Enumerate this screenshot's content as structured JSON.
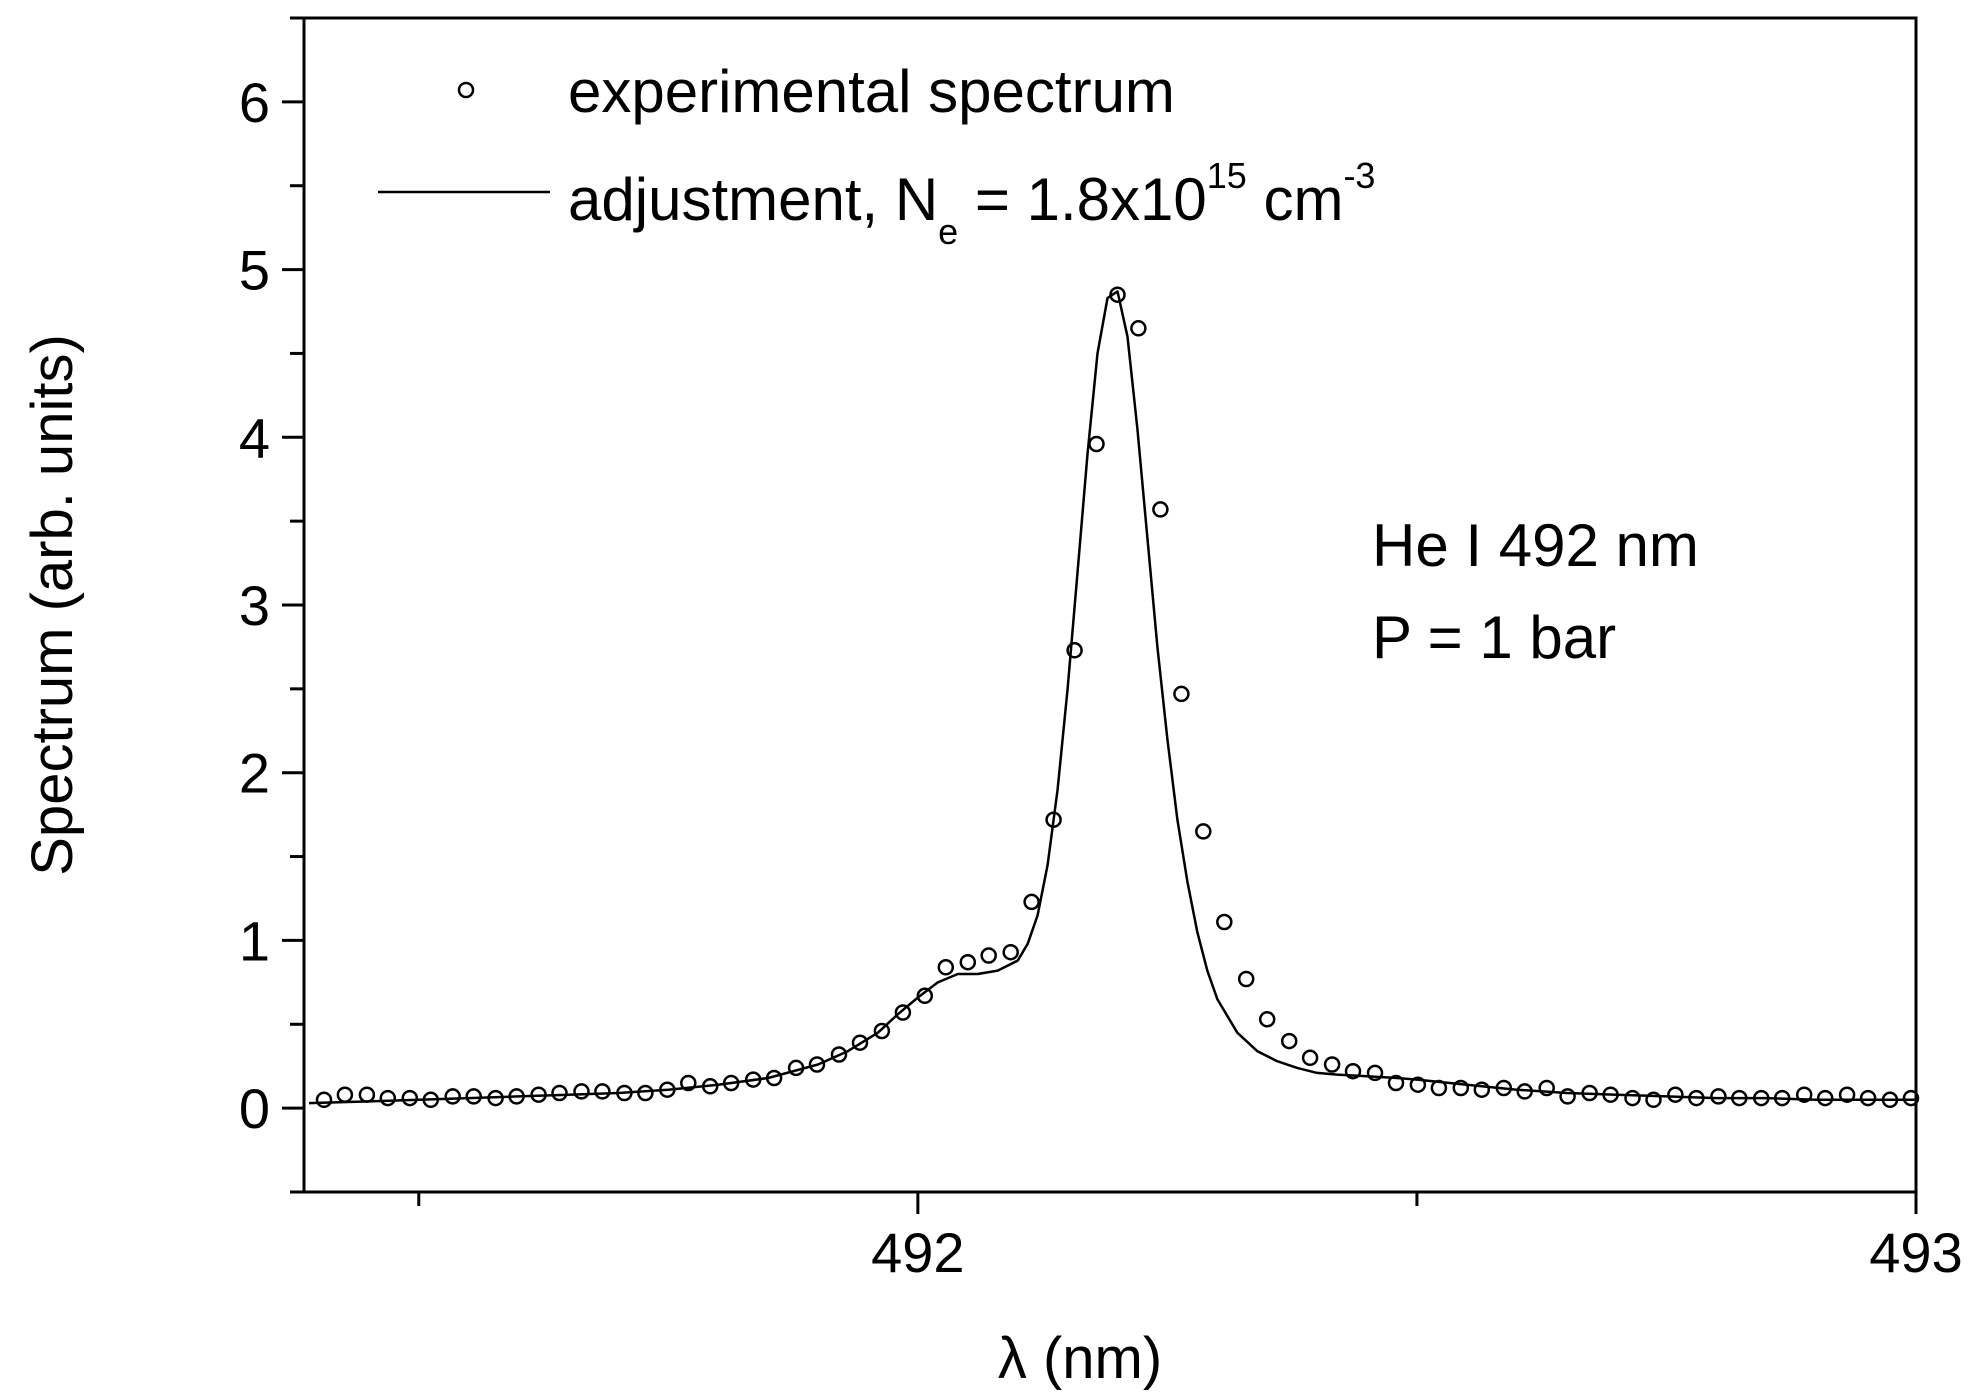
{
  "chart_data": {
    "type": "scatter",
    "title": "",
    "xlabel": "λ (nm)",
    "ylabel": "Spectrum (arb. units)",
    "xlim": [
      491.385,
      493.0
    ],
    "ylim": [
      -0.5,
      6.5
    ],
    "x_ticks": [
      491.5,
      492,
      492.5,
      493
    ],
    "x_tick_labels": [
      "",
      "492",
      "",
      "493"
    ],
    "y_ticks": [
      -0.5,
      0,
      0.5,
      1,
      1.5,
      2,
      2.5,
      3,
      3.5,
      4,
      4.5,
      5,
      5.5,
      6,
      6.5
    ],
    "y_tick_labels": [
      "",
      "0",
      "",
      "1",
      "",
      "2",
      "",
      "3",
      "",
      "4",
      "",
      "5",
      "",
      "6",
      ""
    ],
    "grid": false,
    "legend_position": "top-left",
    "legend": {
      "marker_label": "experimental spectrum",
      "line_label_main": "adjustment, N",
      "line_label_sub": "e",
      "line_label_mid": " = 1.8x10",
      "line_label_sup": "15",
      "line_label_unit": " cm",
      "line_label_unit_sup": "-3"
    },
    "annotations": [
      "He I 492 nm",
      "P = 1 bar"
    ],
    "series": [
      {
        "name": "experimental spectrum",
        "style": "markers",
        "x": [
          491.405,
          491.426,
          491.448,
          491.469,
          491.491,
          491.512,
          491.534,
          491.555,
          491.577,
          491.598,
          491.62,
          491.641,
          491.663,
          491.684,
          491.706,
          491.727,
          491.749,
          491.77,
          491.792,
          491.813,
          491.835,
          491.856,
          491.878,
          491.899,
          491.921,
          491.942,
          491.964,
          491.985,
          492.007,
          492.028,
          492.05,
          492.071,
          492.093,
          492.114,
          492.136,
          492.157,
          492.179,
          492.2,
          492.221,
          492.243,
          492.264,
          492.286,
          492.307,
          492.329,
          492.35,
          492.372,
          492.393,
          492.415,
          492.436,
          492.458,
          492.479,
          492.501,
          492.522,
          492.544,
          492.565,
          492.587,
          492.608,
          492.63,
          492.651,
          492.673,
          492.694,
          492.716,
          492.737,
          492.759,
          492.78,
          492.802,
          492.823,
          492.845,
          492.866,
          492.888,
          492.909,
          492.931,
          492.952,
          492.974,
          492.995
        ],
        "y": [
          0.05,
          0.08,
          0.08,
          0.06,
          0.06,
          0.05,
          0.07,
          0.07,
          0.06,
          0.07,
          0.08,
          0.09,
          0.1,
          0.1,
          0.09,
          0.09,
          0.11,
          0.15,
          0.13,
          0.15,
          0.17,
          0.18,
          0.24,
          0.26,
          0.32,
          0.39,
          0.46,
          0.57,
          0.67,
          0.84,
          0.87,
          0.91,
          0.93,
          1.23,
          1.72,
          2.73,
          3.96,
          4.85,
          4.65,
          3.57,
          2.47,
          1.65,
          1.11,
          0.77,
          0.53,
          0.4,
          0.3,
          0.26,
          0.22,
          0.21,
          0.15,
          0.14,
          0.12,
          0.12,
          0.11,
          0.12,
          0.1,
          0.12,
          0.07,
          0.09,
          0.08,
          0.06,
          0.05,
          0.08,
          0.06,
          0.07,
          0.06,
          0.06,
          0.06,
          0.08,
          0.06,
          0.08,
          0.06,
          0.05,
          0.06
        ]
      },
      {
        "name": "adjustment, Ne = 1.8x10^15 cm^-3",
        "style": "line",
        "x": [
          491.39,
          491.45,
          491.5,
          491.55,
          491.6,
          491.65,
          491.7,
          491.75,
          491.8,
          491.85,
          491.9,
          491.93,
          491.96,
          491.98,
          492.0,
          492.02,
          492.04,
          492.06,
          492.08,
          492.1,
          492.11,
          492.12,
          492.13,
          492.14,
          492.15,
          492.16,
          492.17,
          492.18,
          492.19,
          492.2,
          492.21,
          492.22,
          492.23,
          492.24,
          492.25,
          492.26,
          492.27,
          492.28,
          492.29,
          492.3,
          492.32,
          492.34,
          492.36,
          492.38,
          492.4,
          492.42,
          492.45,
          492.48,
          492.5,
          492.55,
          492.6,
          492.65,
          492.7,
          492.75,
          492.8,
          492.85,
          492.9,
          492.95,
          493.0
        ],
        "y": [
          0.03,
          0.04,
          0.05,
          0.06,
          0.07,
          0.08,
          0.09,
          0.11,
          0.14,
          0.18,
          0.26,
          0.34,
          0.45,
          0.56,
          0.66,
          0.75,
          0.8,
          0.8,
          0.82,
          0.88,
          0.98,
          1.15,
          1.45,
          1.9,
          2.5,
          3.2,
          3.9,
          4.5,
          4.83,
          4.87,
          4.6,
          4.05,
          3.4,
          2.75,
          2.2,
          1.72,
          1.35,
          1.05,
          0.82,
          0.65,
          0.45,
          0.34,
          0.28,
          0.24,
          0.21,
          0.2,
          0.19,
          0.18,
          0.17,
          0.14,
          0.11,
          0.09,
          0.08,
          0.07,
          0.06,
          0.06,
          0.05,
          0.05,
          0.05
        ]
      }
    ]
  }
}
